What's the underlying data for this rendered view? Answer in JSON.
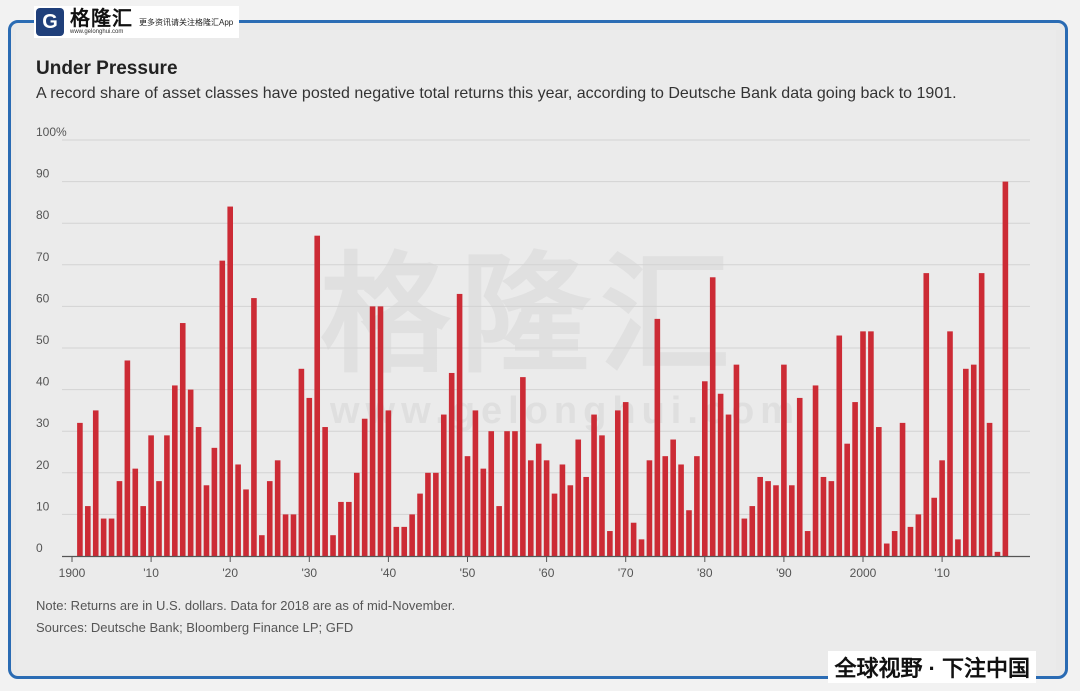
{
  "logo": {
    "mark": "G",
    "name": "格隆汇",
    "url": "www.gelonghui.com",
    "slogan": "更多资讯请关注格隆汇App"
  },
  "watermark": {
    "text": "格隆汇",
    "url": "www.gelonghui.com"
  },
  "footer_cn": "全球视野 · 下注中国",
  "colors": {
    "bar": "#cc2b35",
    "grid": "#d3d3d3",
    "axis": "#555555",
    "frame": "#2a6bb3"
  },
  "chart_data": {
    "type": "bar",
    "title": "Under Pressure",
    "subtitle": "A record share of asset classes have posted negative total returns this year, according to Deutsche Bank data going back to 1901.",
    "x_start": 1901,
    "x_end": 2018,
    "ylim": [
      0,
      100
    ],
    "yticks": [
      "0",
      "10",
      "20",
      "30",
      "40",
      "50",
      "60",
      "70",
      "80",
      "90",
      "100%"
    ],
    "xticks": [
      {
        "year": 1900,
        "label": "1900"
      },
      {
        "year": 1910,
        "label": "'10"
      },
      {
        "year": 1920,
        "label": "'20"
      },
      {
        "year": 1930,
        "label": "'30"
      },
      {
        "year": 1940,
        "label": "'40"
      },
      {
        "year": 1950,
        "label": "'50"
      },
      {
        "year": 1960,
        "label": "'60"
      },
      {
        "year": 1970,
        "label": "'70"
      },
      {
        "year": 1980,
        "label": "'80"
      },
      {
        "year": 1990,
        "label": "'90"
      },
      {
        "year": 2000,
        "label": "2000"
      },
      {
        "year": 2010,
        "label": "'10"
      }
    ],
    "grid": true,
    "values": [
      32,
      12,
      35,
      9,
      9,
      18,
      47,
      21,
      12,
      29,
      18,
      29,
      41,
      56,
      40,
      31,
      17,
      26,
      71,
      84,
      22,
      16,
      62,
      5,
      18,
      23,
      10,
      10,
      45,
      38,
      77,
      31,
      5,
      13,
      13,
      20,
      33,
      60,
      60,
      35,
      7,
      7,
      10,
      15,
      20,
      20,
      34,
      44,
      63,
      24,
      35,
      21,
      30,
      12,
      30,
      30,
      43,
      23,
      27,
      23,
      15,
      22,
      17,
      28,
      19,
      34,
      29,
      6,
      35,
      37,
      8,
      4,
      23,
      57,
      24,
      28,
      22,
      11,
      24,
      42,
      67,
      39,
      34,
      46,
      9,
      12,
      19,
      18,
      17,
      46,
      17,
      38,
      6,
      41,
      19,
      18,
      53,
      27,
      37,
      54,
      54,
      31,
      3,
      6,
      32,
      7,
      10,
      68,
      14,
      23,
      54,
      4,
      45,
      46,
      68,
      32,
      1,
      90
    ],
    "notes": [
      "Note: Returns are in U.S. dollars. Data for 2018 are as of mid-November.",
      "Sources: Deutsche Bank; Bloomberg Finance LP; GFD"
    ]
  }
}
